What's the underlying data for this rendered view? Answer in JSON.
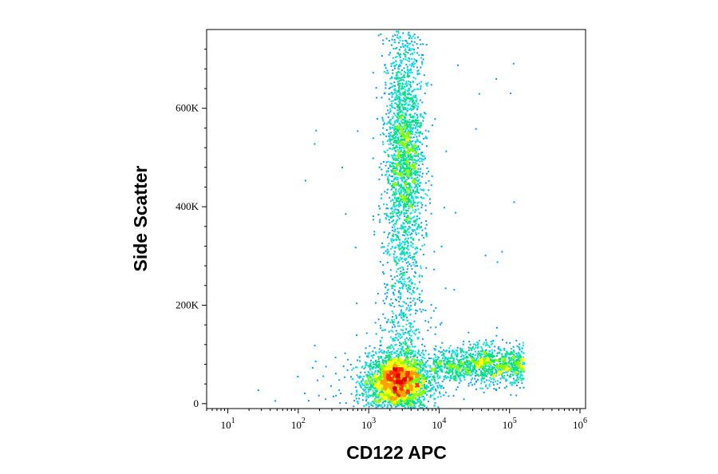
{
  "chart_data": {
    "type": "scatter",
    "subtype": "flow-cytometry density dot plot (pseudocolor)",
    "xlabel": "CD122 APC",
    "ylabel": "Side Scatter",
    "x_scale": "log",
    "x_range": [
      5,
      1200000
    ],
    "y_scale": "linear",
    "y_range": [
      -10000,
      760000
    ],
    "x_ticks": [
      {
        "value": 10,
        "base": "10",
        "exp": "1"
      },
      {
        "value": 100,
        "base": "10",
        "exp": "2"
      },
      {
        "value": 1000,
        "base": "10",
        "exp": "3"
      },
      {
        "value": 10000,
        "base": "10",
        "exp": "4"
      },
      {
        "value": 100000,
        "base": "10",
        "exp": "5"
      },
      {
        "value": 1000000,
        "base": "10",
        "exp": "6"
      }
    ],
    "y_ticks": [
      {
        "value": 0,
        "label": "0"
      },
      {
        "value": 200000,
        "label": "200K"
      },
      {
        "value": 400000,
        "label": "400K"
      },
      {
        "value": 600000,
        "label": "600K"
      }
    ],
    "color_scale": [
      "#0000ff",
      "#00a0ff",
      "#00e0e0",
      "#00e080",
      "#80ff00",
      "#ffff00",
      "#ffa000",
      "#ff3000",
      "#e00000"
    ],
    "populations": [
      {
        "description": "CD122-negative low side scatter cluster",
        "x_center": 2500,
        "y_center": 45000,
        "x_spread_decades": 0.22,
        "y_spread": 28000,
        "density": "highest"
      },
      {
        "description": "CD122-negative high side scatter cluster",
        "x_center": 3200,
        "y_center": 500000,
        "x_spread_decades": 0.13,
        "y_spread": 110000,
        "density": "high"
      },
      {
        "description": "vertical stream between clusters",
        "x_center": 3000,
        "y_range": [
          60000,
          760000
        ],
        "density": "medium"
      },
      {
        "description": "CD122-positive low side scatter population",
        "x_range": [
          8000,
          150000
        ],
        "y_center": 80000,
        "y_spread": 20000,
        "density": "medium-low"
      }
    ],
    "grid": false,
    "legend": "none"
  }
}
